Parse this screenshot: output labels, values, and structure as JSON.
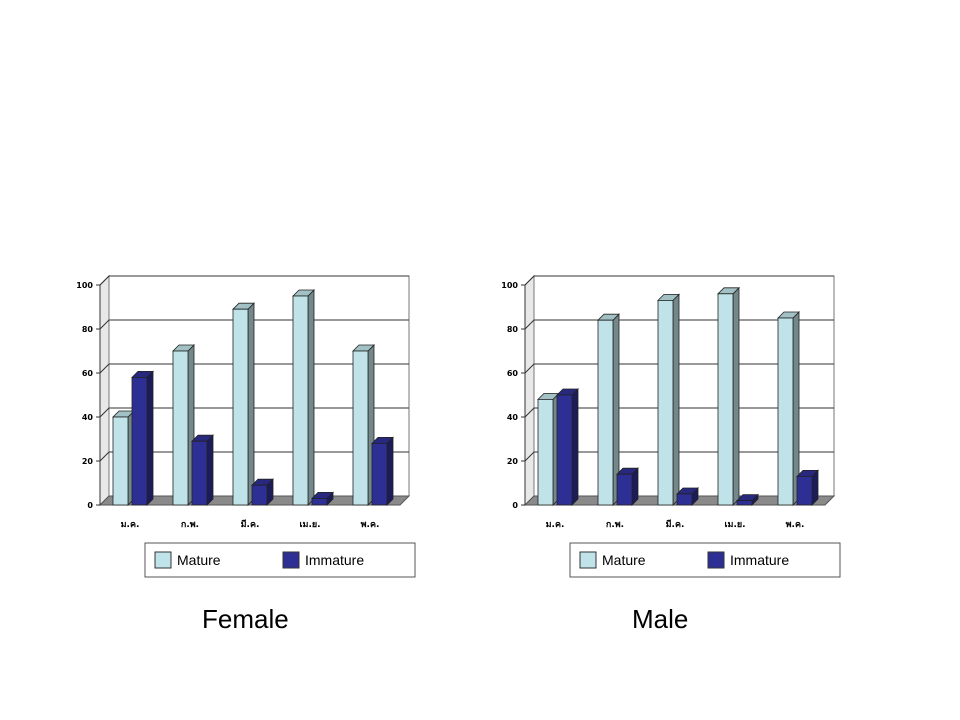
{
  "chart_data": [
    {
      "type": "bar",
      "title": "Female",
      "categories": [
        "ม.ค.",
        "ก.พ.",
        "มี.ค.",
        "เม.ย.",
        "พ.ค."
      ],
      "ylim": [
        0,
        100
      ],
      "yticks": [
        0,
        20,
        40,
        60,
        80,
        100
      ],
      "grid": true,
      "legend": "bottom",
      "series": [
        {
          "name": "Mature",
          "color": "#bfe3e8",
          "values": [
            40,
            70,
            89,
            95,
            70
          ]
        },
        {
          "name": "Immature",
          "color": "#2e2f94",
          "values": [
            58,
            29,
            9,
            3,
            28
          ]
        }
      ]
    },
    {
      "type": "bar",
      "title": "Male",
      "categories": [
        "ม.ค.",
        "ก.พ.",
        "มี.ค.",
        "เม.ย.",
        "พ.ค."
      ],
      "ylim": [
        0,
        100
      ],
      "yticks": [
        0,
        20,
        40,
        60,
        80,
        100
      ],
      "grid": true,
      "legend": "bottom",
      "series": [
        {
          "name": "Mature",
          "color": "#bfe3e8",
          "values": [
            48,
            84,
            93,
            96,
            85
          ]
        },
        {
          "name": "Immature",
          "color": "#2e2f94",
          "values": [
            50,
            14,
            5,
            2,
            13
          ]
        }
      ]
    }
  ]
}
